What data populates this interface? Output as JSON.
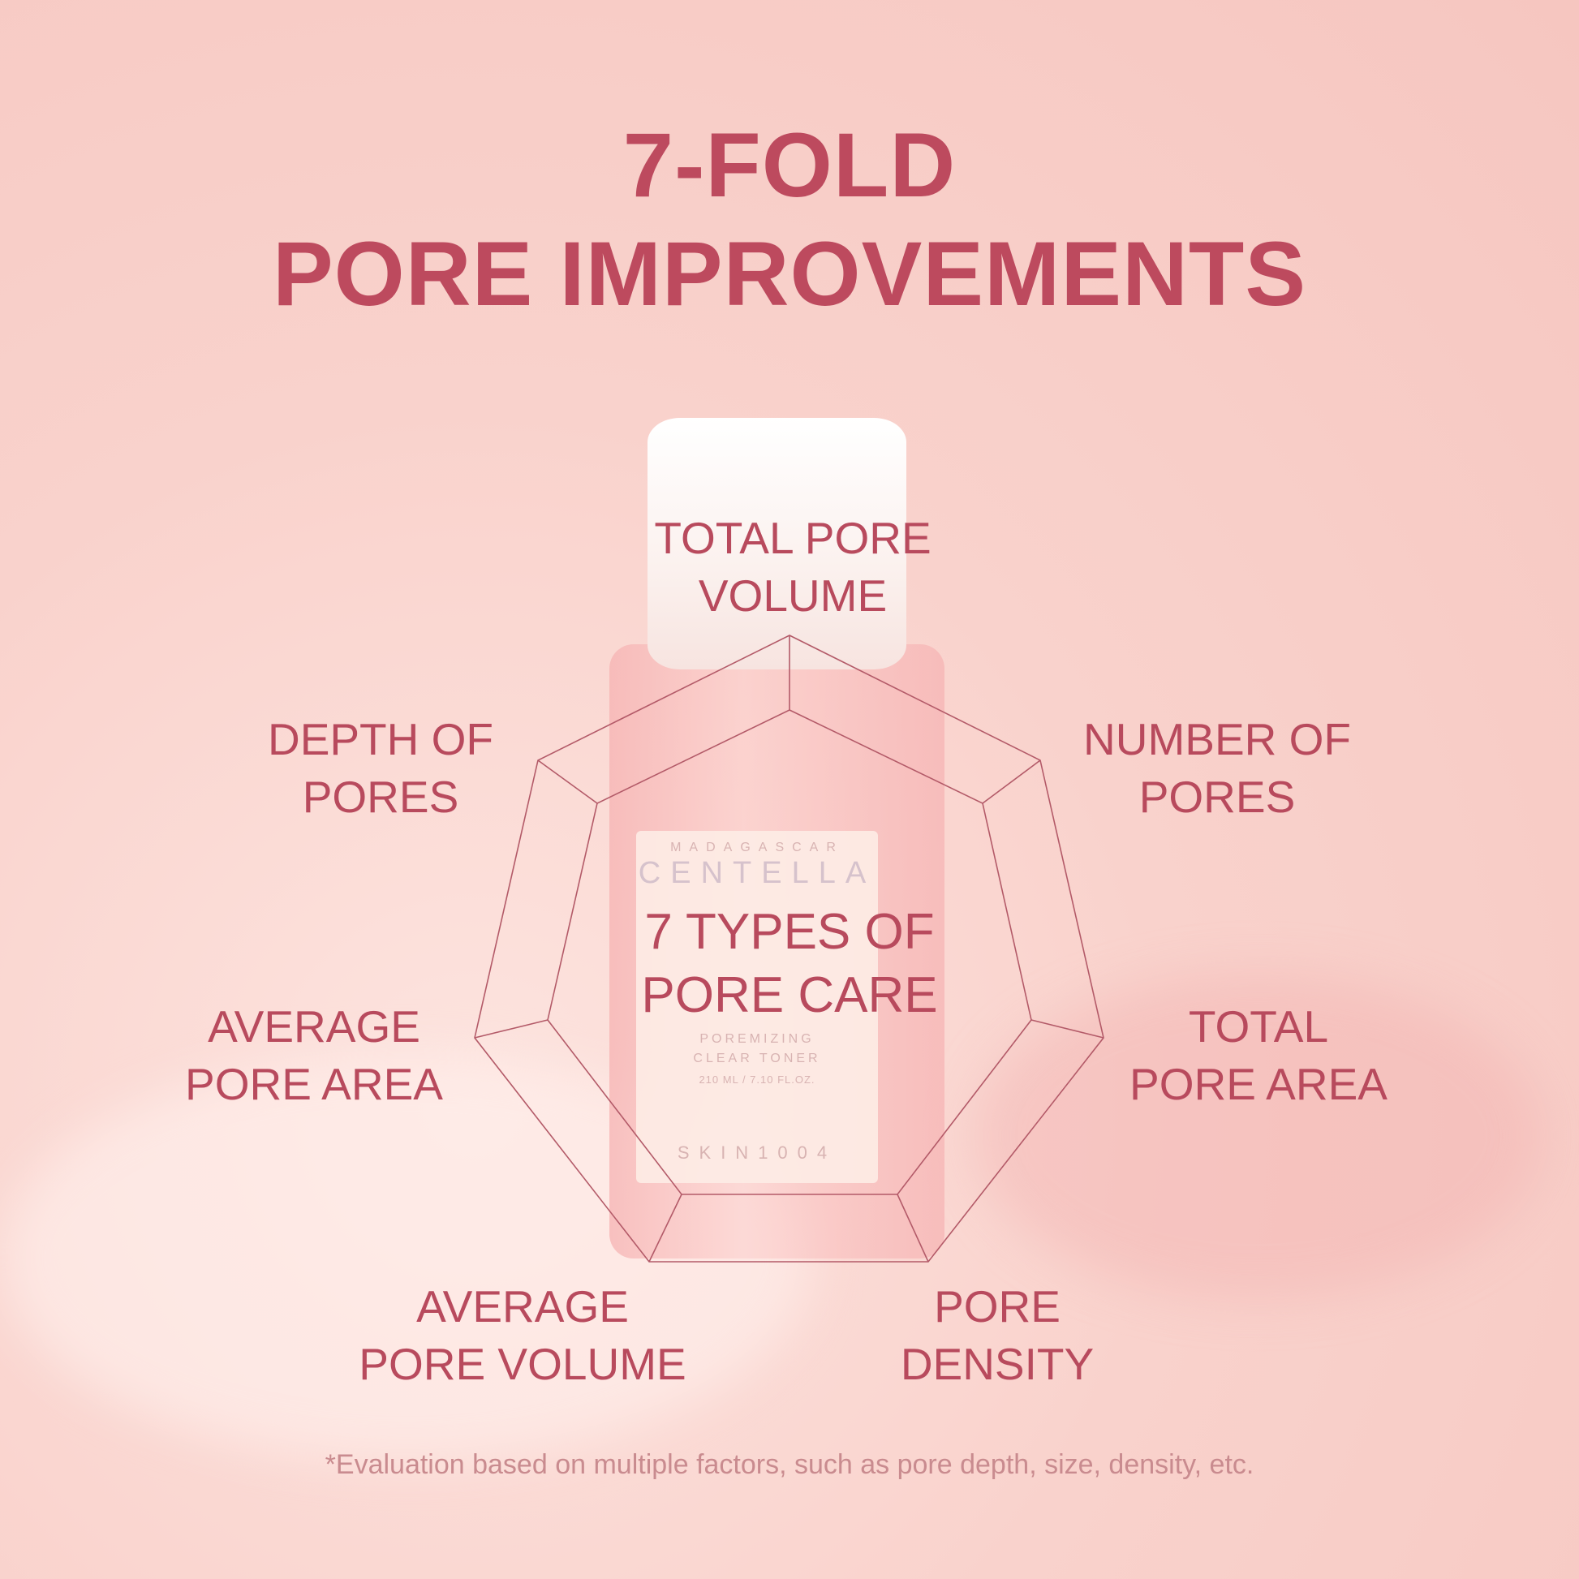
{
  "title": {
    "line1": "7-FOLD",
    "line2": "PORE IMPROVEMENTS"
  },
  "center": {
    "line1": "7 TYPES OF",
    "line2": "PORE CARE"
  },
  "labels": [
    {
      "line1": "TOTAL PORE",
      "line2": "VOLUME"
    },
    {
      "line1": "NUMBER OF",
      "line2": "PORES"
    },
    {
      "line1": "TOTAL",
      "line2": "PORE AREA"
    },
    {
      "line1": "PORE",
      "line2": "DENSITY"
    },
    {
      "line1": "AVERAGE",
      "line2": "PORE VOLUME"
    },
    {
      "line1": "AVERAGE",
      "line2": "PORE AREA"
    },
    {
      "line1": "DEPTH OF",
      "line2": "PORES"
    }
  ],
  "product": {
    "origin": "MADAGASCAR",
    "name": "CENTELLA",
    "type1": "POREMIZING",
    "type2": "CLEAR TONER",
    "volume": "210 ML / 7.10 FL.OZ.",
    "brand": "SKIN1004"
  },
  "footnote": "*Evaluation based on multiple factors, such as pore depth, size, density, etc.",
  "colors": {
    "accent": "#bd4a5e",
    "background": "#f9d2cc",
    "footnote": "#c98b8f",
    "outline": "#b35a68"
  }
}
